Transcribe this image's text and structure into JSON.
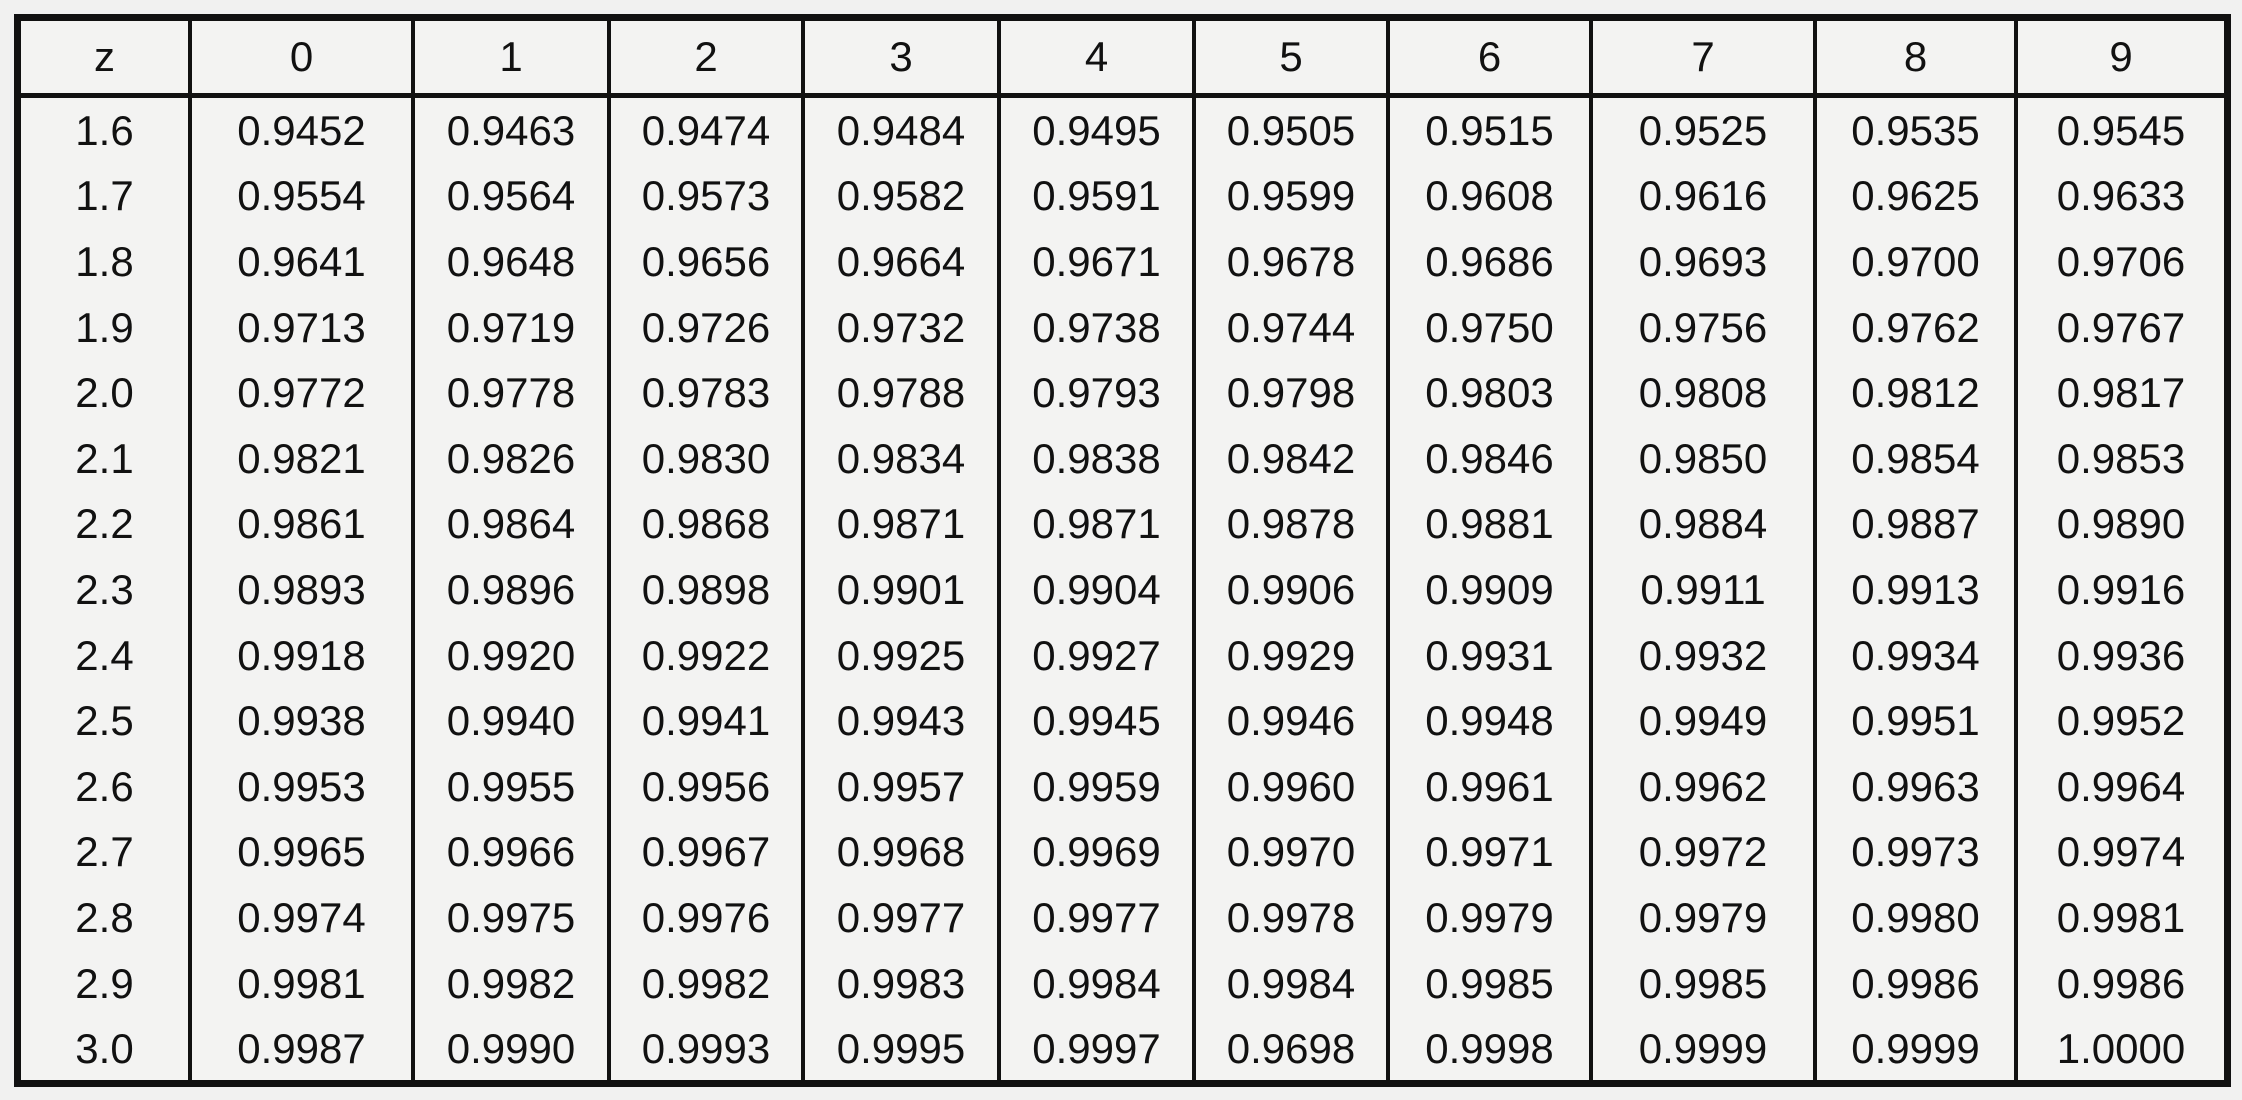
{
  "table": {
    "header": [
      "z",
      "0",
      "1",
      "2",
      "3",
      "4",
      "5",
      "6",
      "7",
      "8",
      "9"
    ],
    "rows": [
      [
        "1.6",
        "0.9452",
        "0.9463",
        "0.9474",
        "0.9484",
        "0.9495",
        "0.9505",
        "0.9515",
        "0.9525",
        "0.9535",
        "0.9545"
      ],
      [
        "1.7",
        "0.9554",
        "0.9564",
        "0.9573",
        "0.9582",
        "0.9591",
        "0.9599",
        "0.9608",
        "0.9616",
        "0.9625",
        "0.9633"
      ],
      [
        "1.8",
        "0.9641",
        "0.9648",
        "0.9656",
        "0.9664",
        "0.9671",
        "0.9678",
        "0.9686",
        "0.9693",
        "0.9700",
        "0.9706"
      ],
      [
        "1.9",
        "0.9713",
        "0.9719",
        "0.9726",
        "0.9732",
        "0.9738",
        "0.9744",
        "0.9750",
        "0.9756",
        "0.9762",
        "0.9767"
      ],
      [
        "2.0",
        "0.9772",
        "0.9778",
        "0.9783",
        "0.9788",
        "0.9793",
        "0.9798",
        "0.9803",
        "0.9808",
        "0.9812",
        "0.9817"
      ],
      [
        "2.1",
        "0.9821",
        "0.9826",
        "0.9830",
        "0.9834",
        "0.9838",
        "0.9842",
        "0.9846",
        "0.9850",
        "0.9854",
        "0.9853"
      ],
      [
        "2.2",
        "0.9861",
        "0.9864",
        "0.9868",
        "0.9871",
        "0.9871",
        "0.9878",
        "0.9881",
        "0.9884",
        "0.9887",
        "0.9890"
      ],
      [
        "2.3",
        "0.9893",
        "0.9896",
        "0.9898",
        "0.9901",
        "0.9904",
        "0.9906",
        "0.9909",
        "0.9911",
        "0.9913",
        "0.9916"
      ],
      [
        "2.4",
        "0.9918",
        "0.9920",
        "0.9922",
        "0.9925",
        "0.9927",
        "0.9929",
        "0.9931",
        "0.9932",
        "0.9934",
        "0.9936"
      ],
      [
        "2.5",
        "0.9938",
        "0.9940",
        "0.9941",
        "0.9943",
        "0.9945",
        "0.9946",
        "0.9948",
        "0.9949",
        "0.9951",
        "0.9952"
      ],
      [
        "2.6",
        "0.9953",
        "0.9955",
        "0.9956",
        "0.9957",
        "0.9959",
        "0.9960",
        "0.9961",
        "0.9962",
        "0.9963",
        "0.9964"
      ],
      [
        "2.7",
        "0.9965",
        "0.9966",
        "0.9967",
        "0.9968",
        "0.9969",
        "0.9970",
        "0.9971",
        "0.9972",
        "0.9973",
        "0.9974"
      ],
      [
        "2.8",
        "0.9974",
        "0.9975",
        "0.9976",
        "0.9977",
        "0.9977",
        "0.9978",
        "0.9979",
        "0.9979",
        "0.9980",
        "0.9981"
      ],
      [
        "2.9",
        "0.9981",
        "0.9982",
        "0.9982",
        "0.9983",
        "0.9984",
        "0.9984",
        "0.9985",
        "0.9985",
        "0.9986",
        "0.9986"
      ],
      [
        "3.0",
        "0.9987",
        "0.9990",
        "0.9993",
        "0.9995",
        "0.9997",
        "0.9698",
        "0.9998",
        "0.9999",
        "0.9999",
        "1.0000"
      ]
    ]
  }
}
